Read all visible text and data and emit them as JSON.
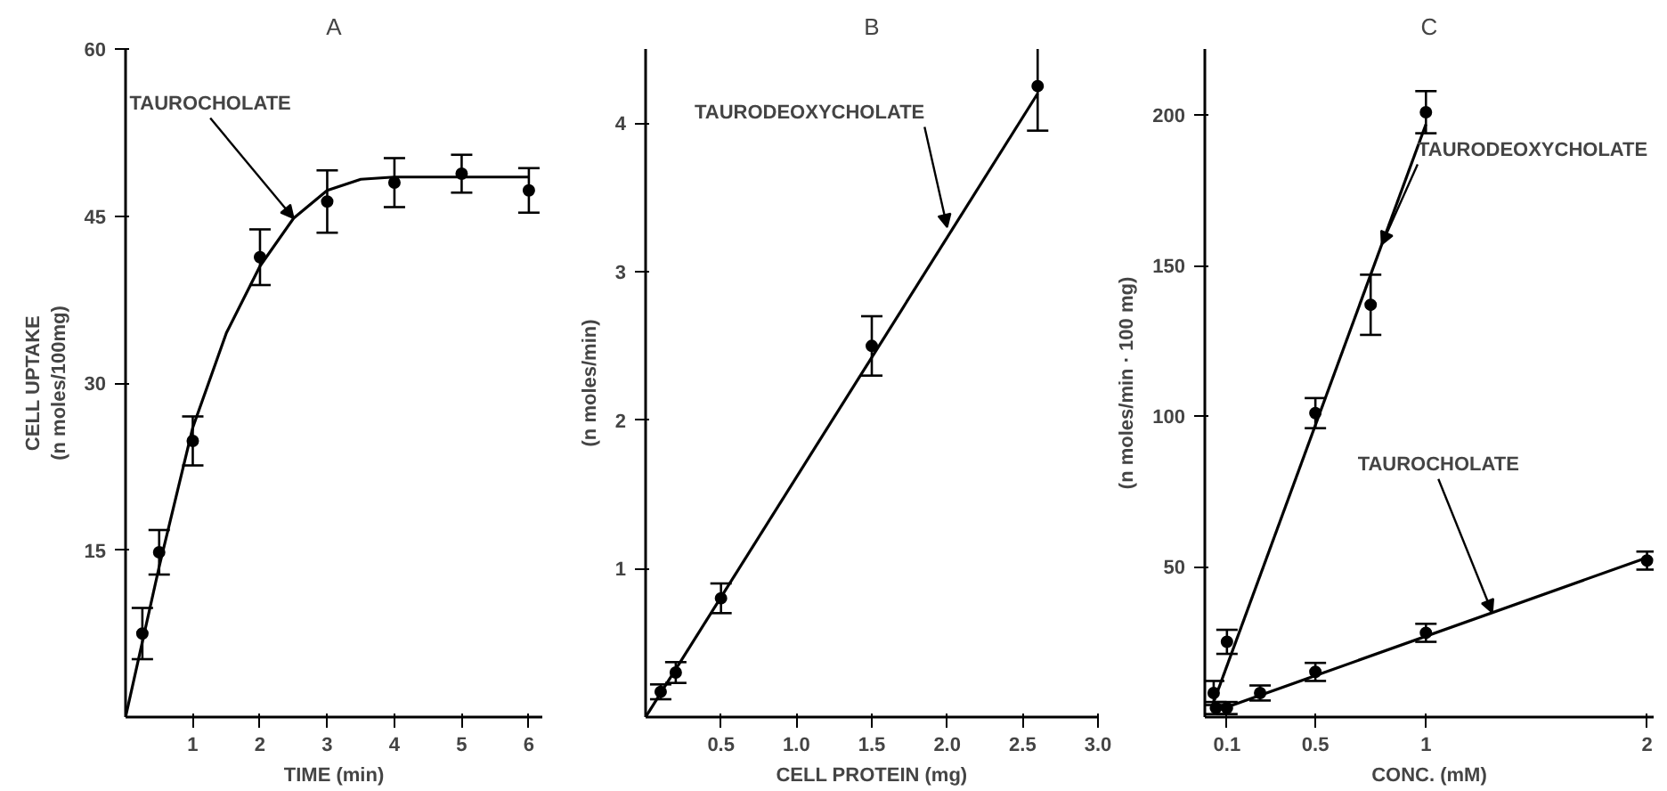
{
  "chart_data": [
    {
      "type": "scatter",
      "title": "A",
      "xlabel": "TIME (min)",
      "ylabel": "CELL UPTAKE\n(n moles/100mg)",
      "xlim": [
        0,
        6.2
      ],
      "ylim": [
        0,
        60
      ],
      "xticks": [
        1,
        2,
        3,
        4,
        5,
        6
      ],
      "yticks": [
        15,
        30,
        45,
        60
      ],
      "grid": false,
      "series": [
        {
          "marker": "circle",
          "color": "#000000",
          "x": [
            0.25,
            0.5,
            1,
            2,
            3,
            4,
            5,
            6
          ],
          "values": [
            7.5,
            14.8,
            24.8,
            41.3,
            46.3,
            48,
            48.8,
            47.3
          ],
          "errors": [
            2.3,
            2,
            2.2,
            2.5,
            2.8,
            2.2,
            1.7,
            2
          ]
        },
        {
          "type": "line",
          "color": "#000000",
          "x": [
            0,
            0.5,
            1,
            1.5,
            2,
            2.5,
            3,
            3.5,
            4,
            5,
            6
          ],
          "values": [
            0,
            13.5,
            26,
            34.5,
            40.5,
            44.8,
            47.3,
            48.3,
            48.5,
            48.5,
            48.5
          ]
        }
      ],
      "annotations": [
        {
          "text": "TAUROCHOLATE",
          "x": 2.5,
          "y": 44.8
        }
      ]
    },
    {
      "type": "scatter",
      "title": "B",
      "xlabel": "CELL PROTEIN (mg)",
      "ylabel": "(n moles/min)",
      "xlim": [
        0,
        3.0
      ],
      "ylim": [
        0,
        4.5
      ],
      "xticks": [
        0.5,
        {
          "value": 1,
          "label": "1.0"
        },
        1.5,
        {
          "value": 2,
          "label": "2.0"
        },
        2.5,
        {
          "value": 3,
          "label": "3.0"
        }
      ],
      "yticks": [
        1,
        2,
        3,
        4
      ],
      "grid": false,
      "series": [
        {
          "marker": "circle",
          "color": "#000000",
          "x": [
            0.1,
            0.2,
            0.5,
            1.5,
            2.6
          ],
          "values": [
            0.17,
            0.3,
            0.8,
            2.5,
            4.25
          ],
          "errors": [
            0.05,
            0.07,
            0.1,
            0.2,
            0.3
          ]
        },
        {
          "type": "line",
          "color": "#000000",
          "x": [
            0,
            2.6
          ],
          "values": [
            0,
            4.2
          ]
        }
      ],
      "annotations": [
        {
          "text": "TAURODEOXYCHOLATE",
          "x": 2.0,
          "y": 3.3
        }
      ]
    },
    {
      "type": "scatter",
      "title": "C",
      "xlabel": "CONC. (mM)",
      "ylabel": "(n moles/min · 100 mg)",
      "xlim": [
        0,
        2.03
      ],
      "ylim": [
        0,
        222
      ],
      "xticks": [
        0.1,
        0.5,
        1,
        2
      ],
      "yticks": [
        50,
        100,
        150,
        200
      ],
      "grid": false,
      "series": [
        {
          "marker": "circle",
          "color": "#000000",
          "x": [
            0.04,
            0.1,
            0.5,
            0.75,
            1
          ],
          "values": [
            8,
            25,
            101,
            137,
            201
          ],
          "errors": [
            4,
            4,
            5,
            10,
            7
          ]
        },
        {
          "type": "line",
          "color": "#000000",
          "x": [
            0.03,
            1
          ],
          "values": [
            3,
            197
          ]
        },
        {
          "marker": "circle",
          "color": "#000000",
          "x": [
            0.05,
            0.1,
            0.25,
            0.5,
            1,
            2
          ],
          "values": [
            3,
            3,
            8,
            15,
            28,
            52
          ],
          "errors": [
            2,
            2,
            2.5,
            3,
            3,
            3
          ]
        },
        {
          "type": "line",
          "color": "#000000",
          "x": [
            0.05,
            2
          ],
          "values": [
            2,
            53
          ]
        }
      ],
      "annotations": [
        {
          "text": "TAURODEOXYCHOLATE",
          "x": 0.8,
          "y": 157
        },
        {
          "text": "TAUROCHOLATE",
          "x": 1.3,
          "y": 34.7
        }
      ]
    }
  ]
}
